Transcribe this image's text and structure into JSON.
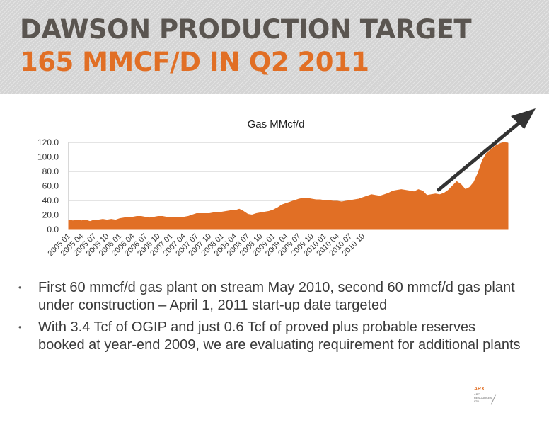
{
  "header": {
    "title_line1": "DAWSON PRODUCTION TARGET",
    "title_line2": "165 MMCF/D IN Q2 2011"
  },
  "colors": {
    "accent": "#e16f25",
    "title_gray": "#5a5550",
    "header_bg": "#d4d4d4",
    "arrow": "#333333"
  },
  "chart_data": {
    "type": "area",
    "title": "Gas MMcf/d",
    "xlabel": "",
    "ylabel": "",
    "ylim": [
      0,
      120
    ],
    "y_ticks": [
      "0.0",
      "20.0",
      "40.0",
      "60.0",
      "80.0",
      "100.0",
      "120.0"
    ],
    "grid": true,
    "x_start": "2005 01",
    "x_end": "2010 12",
    "x_tick_labels": [
      "2005 01",
      "2005 04",
      "2005 07",
      "2005 10",
      "2006 01",
      "2006 04",
      "2006 07",
      "2006 10",
      "2007 01",
      "2007 04",
      "2007 07",
      "2007 10",
      "2008 01",
      "2008 04",
      "2008 07",
      "2008 10",
      "2009 01",
      "2009 04",
      "2009 07",
      "2009 10",
      "2010 01",
      "2010 04",
      "2010 07",
      "2010 10"
    ],
    "series": [
      {
        "values": [
          13,
          12,
          13,
          12,
          13,
          11,
          13,
          13,
          14,
          13,
          14,
          13,
          15,
          16,
          17,
          17,
          18,
          18,
          17,
          16,
          17,
          18,
          18,
          17,
          16,
          17,
          17,
          17,
          18,
          20,
          22,
          22,
          22,
          22,
          23,
          23,
          24,
          25,
          26,
          26,
          28,
          25,
          21,
          20,
          22,
          23,
          24,
          25,
          27,
          30,
          34,
          36,
          38,
          40,
          42,
          43,
          43,
          42,
          41,
          41,
          40,
          40,
          39,
          39,
          38,
          39,
          40,
          41,
          42,
          44,
          46,
          48,
          47,
          46,
          48,
          50,
          53,
          54,
          55,
          54,
          53,
          52,
          55,
          53,
          47,
          48,
          49,
          48,
          50,
          54,
          60,
          66,
          62,
          55,
          58,
          65,
          78,
          95,
          105,
          110,
          115,
          118,
          120,
          119
        ]
      }
    ],
    "annotation": "upward trend arrow"
  },
  "bullets": [
    "First 60 mmcf/d gas plant on stream May 2010, second 60 mmcf/d gas plant under construction – April 1, 2011 start-up date targeted",
    "With 3.4 Tcf of OGIP and just 0.6 Tcf of proved plus probable reserves booked at year-end 2009, we are evaluating requirement for additional plants"
  ],
  "logo": {
    "mark": "ARX",
    "name": "ARC RESOURCES LTD."
  }
}
